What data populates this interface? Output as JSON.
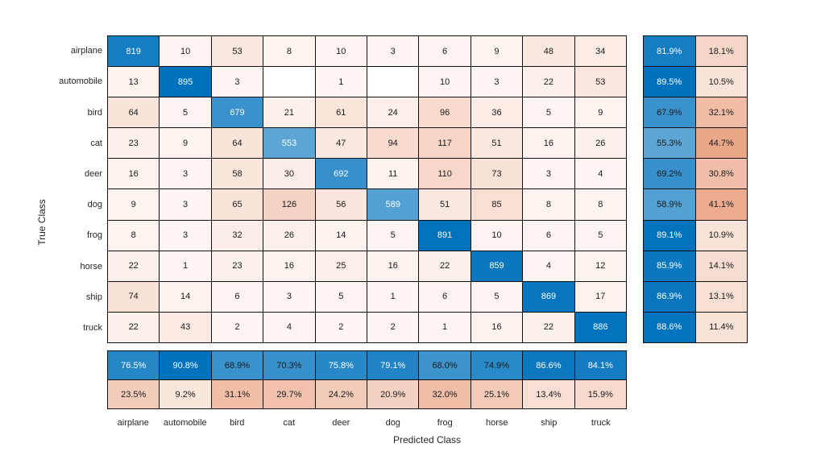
{
  "chart_data": {
    "type": "heatmap",
    "subtype": "confusion-matrix",
    "title": "",
    "xlabel": "Predicted Class",
    "ylabel": "True Class",
    "classes": [
      "airplane",
      "automobile",
      "bird",
      "cat",
      "deer",
      "dog",
      "frog",
      "horse",
      "ship",
      "truck"
    ],
    "matrix": [
      [
        819,
        10,
        53,
        8,
        10,
        3,
        6,
        9,
        48,
        34
      ],
      [
        13,
        895,
        3,
        0,
        1,
        0,
        10,
        3,
        22,
        53
      ],
      [
        64,
        5,
        679,
        21,
        61,
        24,
        96,
        36,
        5,
        9
      ],
      [
        23,
        9,
        64,
        553,
        47,
        94,
        117,
        51,
        16,
        26
      ],
      [
        16,
        3,
        58,
        30,
        692,
        11,
        110,
        73,
        3,
        4
      ],
      [
        9,
        3,
        65,
        126,
        56,
        589,
        51,
        85,
        8,
        8
      ],
      [
        8,
        3,
        32,
        26,
        14,
        5,
        891,
        10,
        6,
        5
      ],
      [
        22,
        1,
        23,
        16,
        25,
        16,
        22,
        859,
        4,
        12
      ],
      [
        74,
        14,
        6,
        3,
        5,
        1,
        6,
        5,
        869,
        17
      ],
      [
        22,
        43,
        2,
        4,
        2,
        2,
        1,
        16,
        22,
        886
      ]
    ],
    "row_summary": {
      "correct_pct": [
        81.9,
        89.5,
        67.9,
        55.3,
        69.2,
        58.9,
        89.1,
        85.9,
        86.9,
        88.6
      ],
      "incorrect_pct": [
        18.1,
        10.5,
        32.1,
        44.7,
        30.8,
        41.1,
        10.9,
        14.1,
        13.1,
        11.4
      ]
    },
    "col_summary": {
      "correct_pct": [
        76.5,
        90.8,
        68.9,
        70.3,
        75.8,
        79.1,
        68.0,
        74.9,
        86.6,
        84.1
      ],
      "incorrect_pct": [
        23.5,
        9.2,
        31.1,
        29.7,
        24.2,
        20.9,
        32.0,
        25.1,
        13.4,
        15.9
      ]
    },
    "colors": {
      "diagonal_base": "#0072BD",
      "off_diagonal_base": "#D95319",
      "grid_line": "#111111",
      "cell_text_dark": "#1a1a1a",
      "cell_text_light": "#ffffff",
      "axis_label": "#262626",
      "background": "#ffffff"
    },
    "layout": {
      "grid": "on",
      "legend": "none",
      "row_summary_position": "right",
      "col_summary_position": "bottom"
    }
  }
}
